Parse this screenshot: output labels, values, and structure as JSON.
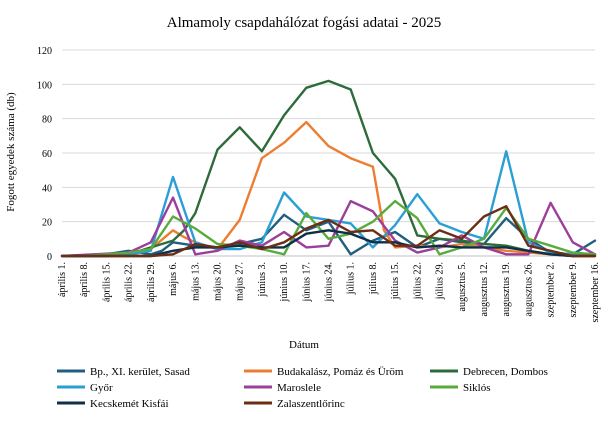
{
  "chart_data": {
    "type": "line",
    "title": "Almamoly csapdahálózat fogási adatai - 2025",
    "xlabel": "Dátum",
    "ylabel": "Fogott egyedek száma (db)",
    "ylim": [
      0,
      120
    ],
    "yticks": [
      0,
      20,
      40,
      60,
      80,
      100,
      120
    ],
    "grid": true,
    "legend_position": "bottom",
    "categories": [
      "április 1.",
      "április 8.",
      "április 15.",
      "április 22.",
      "április 29.",
      "május 6.",
      "május 13.",
      "május 20.",
      "május 27.",
      "június 3.",
      "június 10.",
      "június 17.",
      "június 24.",
      "július 1.",
      "július 8.",
      "július 15.",
      "július 22.",
      "július 29.",
      "augusztus 5.",
      "augusztus 12.",
      "augusztus 19.",
      "augusztus 26.",
      "szeptember 2.",
      "szeptember 9.",
      "szeptember 16."
    ],
    "x": [
      0,
      2,
      4,
      6,
      8,
      10,
      12,
      14,
      16,
      18,
      20,
      22,
      24,
      26,
      28,
      30,
      32,
      34,
      36,
      38,
      40,
      42,
      44,
      46,
      48
    ],
    "series": [
      {
        "name": "Bp., XI. kerület, Sasad",
        "color": "#1f5f7f",
        "points": [
          [
            0,
            0
          ],
          [
            4,
            1
          ],
          [
            6,
            3
          ],
          [
            8,
            1
          ],
          [
            9,
            3
          ],
          [
            10,
            8
          ],
          [
            12,
            6
          ],
          [
            14,
            5
          ],
          [
            16,
            7
          ],
          [
            18,
            10
          ],
          [
            20,
            24
          ],
          [
            22,
            15
          ],
          [
            24,
            20
          ],
          [
            26,
            1
          ],
          [
            28,
            9
          ],
          [
            30,
            14
          ],
          [
            32,
            5
          ],
          [
            34,
            10
          ],
          [
            36,
            8
          ],
          [
            38,
            7
          ],
          [
            40,
            22
          ],
          [
            42,
            10
          ],
          [
            44,
            2
          ],
          [
            46,
            1
          ],
          [
            48,
            9
          ]
        ]
      },
      {
        "name": "Budakalász, Pomáz és Üröm",
        "color": "#ed7d31",
        "points": [
          [
            0,
            0
          ],
          [
            6,
            0
          ],
          [
            8,
            4
          ],
          [
            10,
            15
          ],
          [
            11,
            11
          ],
          [
            12,
            8
          ],
          [
            14,
            4
          ],
          [
            16,
            21
          ],
          [
            18,
            57
          ],
          [
            20,
            66
          ],
          [
            22,
            78
          ],
          [
            24,
            64
          ],
          [
            26,
            57
          ],
          [
            28,
            52
          ],
          [
            29,
            15
          ],
          [
            30,
            5
          ],
          [
            32,
            6
          ],
          [
            34,
            5
          ],
          [
            36,
            7
          ],
          [
            38,
            5
          ],
          [
            40,
            3
          ],
          [
            42,
            2
          ],
          [
            44,
            1
          ],
          [
            46,
            0
          ],
          [
            48,
            0
          ]
        ]
      },
      {
        "name": "Debrecen, Dombos",
        "color": "#2e6b3a",
        "points": [
          [
            0,
            0
          ],
          [
            2,
            0
          ],
          [
            4,
            0
          ],
          [
            6,
            1
          ],
          [
            8,
            5
          ],
          [
            10,
            9
          ],
          [
            11,
            15
          ],
          [
            12,
            25
          ],
          [
            14,
            62
          ],
          [
            16,
            75
          ],
          [
            18,
            61
          ],
          [
            20,
            82
          ],
          [
            22,
            98
          ],
          [
            24,
            102
          ],
          [
            26,
            97
          ],
          [
            28,
            60
          ],
          [
            30,
            45
          ],
          [
            32,
            12
          ],
          [
            34,
            10
          ],
          [
            36,
            9
          ],
          [
            38,
            7
          ],
          [
            40,
            6
          ],
          [
            42,
            3
          ],
          [
            44,
            1
          ],
          [
            46,
            0
          ],
          [
            48,
            1
          ]
        ]
      },
      {
        "name": "Győr",
        "color": "#2a9fd6",
        "points": [
          [
            0,
            0
          ],
          [
            4,
            0
          ],
          [
            6,
            1
          ],
          [
            8,
            3
          ],
          [
            10,
            46
          ],
          [
            12,
            8
          ],
          [
            14,
            4
          ],
          [
            16,
            4
          ],
          [
            18,
            8
          ],
          [
            20,
            37
          ],
          [
            22,
            23
          ],
          [
            24,
            21
          ],
          [
            26,
            19
          ],
          [
            28,
            5
          ],
          [
            30,
            18
          ],
          [
            32,
            36
          ],
          [
            34,
            19
          ],
          [
            36,
            14
          ],
          [
            38,
            10
          ],
          [
            40,
            61
          ],
          [
            42,
            8
          ],
          [
            44,
            2
          ],
          [
            46,
            1
          ],
          [
            48,
            1
          ]
        ]
      },
      {
        "name": "Maroslele",
        "color": "#9b3f9b",
        "points": [
          [
            0,
            0
          ],
          [
            6,
            2
          ],
          [
            8,
            8
          ],
          [
            10,
            34
          ],
          [
            12,
            1
          ],
          [
            14,
            3
          ],
          [
            16,
            9
          ],
          [
            18,
            6
          ],
          [
            20,
            14
          ],
          [
            22,
            5
          ],
          [
            24,
            6
          ],
          [
            26,
            32
          ],
          [
            28,
            26
          ],
          [
            30,
            9
          ],
          [
            32,
            2
          ],
          [
            34,
            5
          ],
          [
            36,
            12
          ],
          [
            38,
            5
          ],
          [
            40,
            1
          ],
          [
            42,
            1
          ],
          [
            44,
            31
          ],
          [
            46,
            8
          ],
          [
            48,
            1
          ]
        ]
      },
      {
        "name": "Siklós",
        "color": "#5aab3e",
        "points": [
          [
            0,
            0
          ],
          [
            2,
            0
          ],
          [
            4,
            1
          ],
          [
            6,
            2
          ],
          [
            8,
            4
          ],
          [
            10,
            23
          ],
          [
            12,
            16
          ],
          [
            14,
            7
          ],
          [
            16,
            6
          ],
          [
            18,
            4
          ],
          [
            20,
            1
          ],
          [
            22,
            25
          ],
          [
            24,
            10
          ],
          [
            26,
            13
          ],
          [
            28,
            20
          ],
          [
            30,
            32
          ],
          [
            32,
            22
          ],
          [
            34,
            1
          ],
          [
            36,
            5
          ],
          [
            38,
            10
          ],
          [
            40,
            28
          ],
          [
            42,
            10
          ],
          [
            44,
            6
          ],
          [
            46,
            2
          ],
          [
            48,
            1
          ]
        ]
      },
      {
        "name": "Kecskemét Kisfái",
        "color": "#0f2f48",
        "points": [
          [
            0,
            0
          ],
          [
            8,
            0
          ],
          [
            10,
            3
          ],
          [
            12,
            5
          ],
          [
            14,
            5
          ],
          [
            16,
            6
          ],
          [
            18,
            5
          ],
          [
            20,
            5
          ],
          [
            22,
            13
          ],
          [
            24,
            15
          ],
          [
            26,
            13
          ],
          [
            28,
            8
          ],
          [
            30,
            8
          ],
          [
            32,
            5
          ],
          [
            34,
            6
          ],
          [
            36,
            5
          ],
          [
            38,
            5
          ],
          [
            40,
            5
          ],
          [
            42,
            3
          ],
          [
            44,
            1
          ],
          [
            46,
            0
          ],
          [
            48,
            0
          ]
        ]
      },
      {
        "name": "Zalaszentlőrinc",
        "color": "#6b2e14",
        "points": [
          [
            0,
            0
          ],
          [
            8,
            0
          ],
          [
            10,
            1
          ],
          [
            12,
            7
          ],
          [
            14,
            5
          ],
          [
            16,
            8
          ],
          [
            18,
            4
          ],
          [
            20,
            8
          ],
          [
            22,
            16
          ],
          [
            24,
            21
          ],
          [
            26,
            14
          ],
          [
            28,
            15
          ],
          [
            30,
            6
          ],
          [
            32,
            6
          ],
          [
            34,
            15
          ],
          [
            36,
            10
          ],
          [
            38,
            23
          ],
          [
            40,
            29
          ],
          [
            42,
            6
          ],
          [
            44,
            3
          ],
          [
            46,
            0
          ],
          [
            48,
            0
          ]
        ]
      }
    ]
  }
}
